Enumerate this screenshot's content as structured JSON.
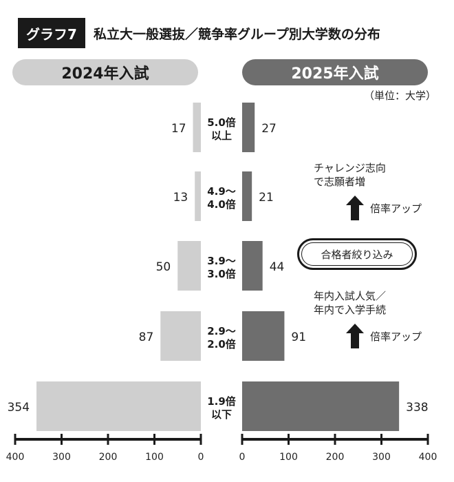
{
  "header": {
    "badge": "グラフ7",
    "title": "私立大一般選抜／競争率グループ別大学数の分布"
  },
  "panels": {
    "left_label": "2024年入試",
    "right_label": "2025年入試"
  },
  "unit_label": "（単位：大学）",
  "annotations": {
    "top_note_line1": "チャレンジ志向",
    "top_note_line2": "で志願者増",
    "top_arrow_label": "倍率アップ",
    "pass_label": "合格者絞り込み",
    "bottom_note_line1": "年内入試人気／",
    "bottom_note_line2": "年内で入学手続",
    "bottom_arrow_label": "倍率アップ"
  },
  "colors": {
    "left_bar": "#cfcfcf",
    "right_bar": "#6e6e6e",
    "axis": "#1a1a1a"
  },
  "chart_data": {
    "type": "bar",
    "orientation": "horizontal-butterfly",
    "categories": [
      [
        "5.0倍",
        "以上"
      ],
      [
        "4.9～",
        "4.0倍"
      ],
      [
        "3.9～",
        "3.0倍"
      ],
      [
        "2.9～",
        "2.0倍"
      ],
      [
        "1.9倍",
        "以下"
      ]
    ],
    "series": [
      {
        "name": "2024年入試",
        "values": [
          17,
          13,
          50,
          87,
          354
        ]
      },
      {
        "name": "2025年入試",
        "values": [
          27,
          21,
          44,
          91,
          338
        ]
      }
    ],
    "left_axis": {
      "range": [
        400,
        0
      ],
      "ticks": [
        400,
        300,
        200,
        100,
        0
      ]
    },
    "right_axis": {
      "range": [
        0,
        400
      ],
      "ticks": [
        0,
        100,
        200,
        300,
        400
      ]
    }
  }
}
